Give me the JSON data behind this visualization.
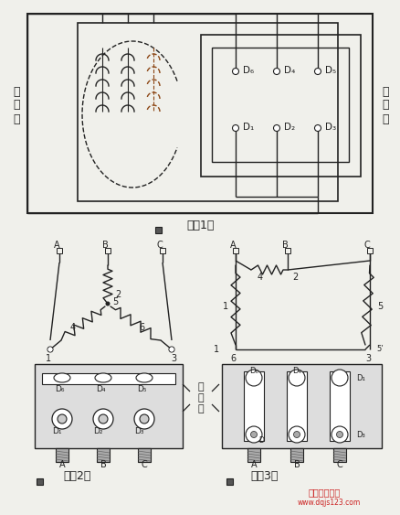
{
  "bg_color": "#f0f0eb",
  "line_color": "#222222",
  "fig1_label": "图（1）",
  "fig2_label": "图（2）",
  "fig3_label": "图（3）",
  "motor_label": "电\n动\n机",
  "terminal_label": "接\n线\n板",
  "between_label": "接\n线\n板",
  "D6": "D₆",
  "D4": "D₄",
  "D5": "D₅",
  "D1": "D₁",
  "D2": "D₂",
  "D3": "D₃",
  "watermark1": "电工技术之家",
  "watermark2": "www.dqjs123.com"
}
